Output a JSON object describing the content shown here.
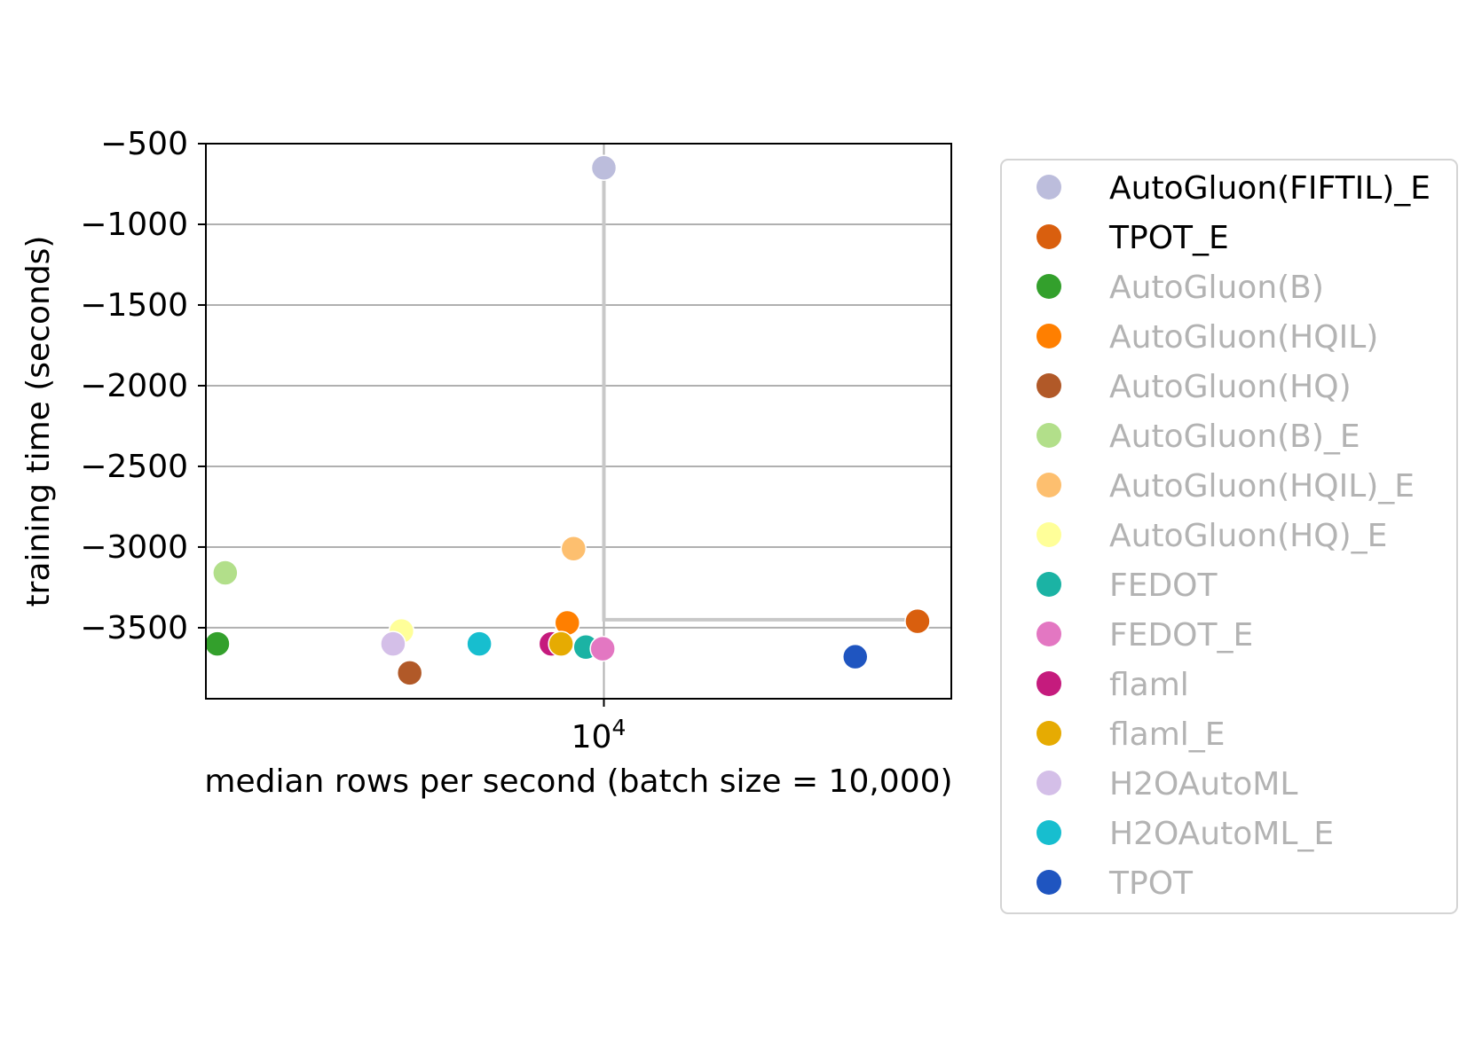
{
  "chart_data": {
    "type": "scatter",
    "title": "",
    "xlabel": "median rows per second (batch size = 10,000)",
    "ylabel": "training time (seconds)",
    "x_scale": "log",
    "x_ticks": [
      {
        "value": 10000,
        "label_base": "10",
        "label_exp": "4"
      }
    ],
    "xlim": [
      5100,
      18000
    ],
    "ylim": [
      -3940,
      -500
    ],
    "y_ticks": [
      {
        "value": -500,
        "label": "−500"
      },
      {
        "value": -1000,
        "label": "−1000"
      },
      {
        "value": -1500,
        "label": "−1500"
      },
      {
        "value": -2000,
        "label": "−2000"
      },
      {
        "value": -2500,
        "label": "−2500"
      },
      {
        "value": -3000,
        "label": "−3000"
      },
      {
        "value": -3500,
        "label": "−3500"
      }
    ],
    "grid": true,
    "legend_position": "outside right",
    "highlight_lines": {
      "vertical_x": 10000,
      "frontier": [
        [
          10000,
          -650
        ],
        [
          10000,
          -3450
        ],
        [
          17000,
          -3450
        ]
      ]
    },
    "series": [
      {
        "name": "AutoGluon(FIFTIL)_E",
        "color": "#bcbddc",
        "active": true,
        "points": [
          [
            10000,
            -650
          ]
        ]
      },
      {
        "name": "TPOT_E",
        "color": "#d95f0e",
        "active": true,
        "points": [
          [
            17000,
            -3460
          ]
        ]
      },
      {
        "name": "AutoGluon(B)",
        "color": "#33a02c",
        "active": false,
        "points": [
          [
            5200,
            -3600
          ]
        ]
      },
      {
        "name": "AutoGluon(HQIL)",
        "color": "#ff7f00",
        "active": false,
        "points": [
          [
            9400,
            -3470
          ]
        ]
      },
      {
        "name": "AutoGluon(HQ)",
        "color": "#b15928",
        "active": false,
        "points": [
          [
            7200,
            -3780
          ]
        ]
      },
      {
        "name": "AutoGluon(B)_E",
        "color": "#b2df8a",
        "active": false,
        "points": [
          [
            5270,
            -3160
          ]
        ]
      },
      {
        "name": "AutoGluon(HQIL)_E",
        "color": "#fdbf6f",
        "active": false,
        "points": [
          [
            9500,
            -3010
          ]
        ]
      },
      {
        "name": "AutoGluon(HQ)_E",
        "color": "#ffff99",
        "active": false,
        "points": [
          [
            7100,
            -3520
          ]
        ]
      },
      {
        "name": "FEDOT",
        "color": "#1bb3a4",
        "active": false,
        "points": [
          [
            9700,
            -3620
          ]
        ]
      },
      {
        "name": "FEDOT_E",
        "color": "#e377c2",
        "active": false,
        "points": [
          [
            9980,
            -3630
          ]
        ]
      },
      {
        "name": "flaml",
        "color": "#c51b7d",
        "active": false,
        "points": [
          [
            9150,
            -3600
          ]
        ]
      },
      {
        "name": "flaml_E",
        "color": "#e6ab02",
        "active": false,
        "points": [
          [
            9300,
            -3600
          ]
        ]
      },
      {
        "name": "H2OAutoML",
        "color": "#d4bfe8",
        "active": false,
        "points": [
          [
            7000,
            -3600
          ]
        ]
      },
      {
        "name": "H2OAutoML_E",
        "color": "#17becf",
        "active": false,
        "points": [
          [
            8100,
            -3600
          ]
        ]
      },
      {
        "name": "TPOT",
        "color": "#1f55c0",
        "active": false,
        "points": [
          [
            15300,
            -3680
          ]
        ]
      }
    ]
  }
}
